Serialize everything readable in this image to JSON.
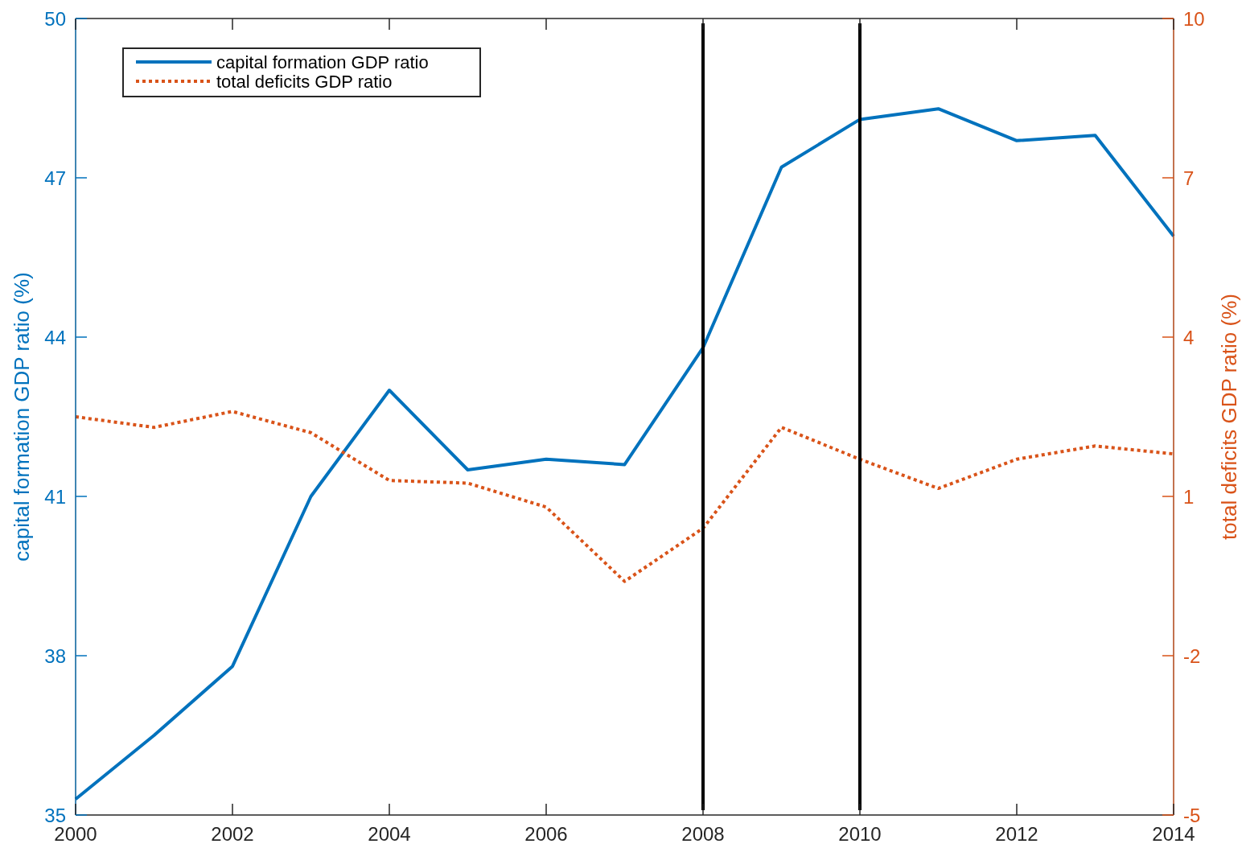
{
  "chart_data": {
    "type": "line",
    "xlabel": null,
    "ylabel": "capital formation GDP ratio (%)",
    "y2label": "total deficits GDP ratio (%)",
    "x": [
      2000,
      2001,
      2002,
      2003,
      2004,
      2005,
      2006,
      2007,
      2008,
      2009,
      2010,
      2011,
      2012,
      2013,
      2014
    ],
    "series": [
      {
        "name": "capital formation GDP ratio",
        "color": "#0072bd",
        "line_style": "solid",
        "values": [
          35.3,
          36.5,
          37.8,
          41.0,
          43.0,
          41.5,
          41.7,
          41.6,
          43.8,
          47.2,
          48.1,
          48.3,
          47.7,
          47.8,
          45.9
        ]
      },
      {
        "name": "total deficits GDP ratio",
        "color": "#d95319",
        "line_style": "dotted",
        "axis": "y2",
        "values": [
          2.5,
          2.3,
          2.6,
          2.2,
          1.3,
          1.25,
          0.8,
          -0.6,
          0.4,
          2.3,
          1.7,
          1.15,
          1.7,
          1.95,
          1.8
        ]
      }
    ],
    "xlim": [
      2000,
      2014
    ],
    "xticks": [
      2000,
      2002,
      2004,
      2006,
      2008,
      2010,
      2012,
      2014
    ],
    "ylim": [
      35,
      50
    ],
    "yticks": [
      35,
      38,
      41,
      44,
      47,
      50
    ],
    "y2lim": [
      -5,
      10
    ],
    "y2ticks": [
      -5,
      -2,
      1,
      4,
      7,
      10
    ],
    "ref_lines": [
      {
        "axis": "x",
        "value": 2008,
        "color": "#000000"
      },
      {
        "axis": "x",
        "value": 2010,
        "color": "#000000"
      }
    ],
    "legend": "top left",
    "grid": false
  }
}
